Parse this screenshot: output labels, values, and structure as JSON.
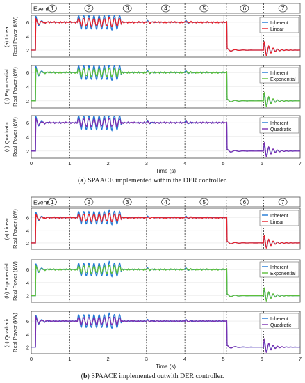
{
  "colors": {
    "inherent": "#1f77d4",
    "linear": "#e8202a",
    "exponential": "#5cbf3a",
    "quadratic": "#7b2fb0",
    "event_line": "#333333",
    "grid": "#e4e4e4"
  },
  "captions": [
    {
      "tag": "a",
      "text": "SPAACE implemented within the DER controller."
    },
    {
      "tag": "b",
      "text": "SPAACE implemented outwith DER controller."
    }
  ],
  "chart_data": [
    {
      "type": "line",
      "group": "a",
      "events_label": "Events",
      "events": [
        {
          "label": "1",
          "x": 0.55
        },
        {
          "label": "2",
          "x": 1.5
        },
        {
          "label": "3",
          "x": 2.5
        },
        {
          "label": "4",
          "x": 3.5
        },
        {
          "label": "5",
          "x": 4.5
        },
        {
          "label": "6",
          "x": 5.55
        },
        {
          "label": "7",
          "x": 6.55
        }
      ],
      "event_times": [
        1,
        2,
        3,
        4,
        5.08,
        6.05
      ],
      "xlim": [
        0,
        7
      ],
      "xticks": [
        "0",
        "1",
        "2",
        "3",
        "4",
        "5",
        "6",
        "7"
      ],
      "xlabel": "Time (s)",
      "ylabel": "Real Power (kW)",
      "ylim": [
        1,
        7
      ],
      "yticks": [
        "2",
        "4",
        "6"
      ],
      "subplots": [
        {
          "row_label": "(a) Linear",
          "series": [
            {
              "name": "Inherent",
              "color_key": "inherent"
            },
            {
              "name": "Linear",
              "color_key": "linear"
            }
          ]
        },
        {
          "row_label": "(b) Exponential",
          "series": [
            {
              "name": "Inherent",
              "color_key": "inherent"
            },
            {
              "name": "Exponential",
              "color_key": "exponential"
            }
          ]
        },
        {
          "row_label": "(c) Quadratic",
          "series": [
            {
              "name": "Inherent",
              "color_key": "inherent"
            },
            {
              "name": "Quadratic",
              "color_key": "quadratic"
            }
          ]
        }
      ],
      "levels": {
        "initial": 2,
        "high": 6,
        "after_step": 2
      },
      "step_times": {
        "rise": 0.12,
        "fall": 5.1
      },
      "oscillation_window": [
        1.2,
        2.35
      ],
      "oscillation_amplitude": 1.3
    },
    {
      "type": "line",
      "group": "b",
      "events_label": "Events",
      "events": [
        {
          "label": "1",
          "x": 0.55
        },
        {
          "label": "2",
          "x": 1.5
        },
        {
          "label": "3",
          "x": 2.5
        },
        {
          "label": "4",
          "x": 3.5
        },
        {
          "label": "5",
          "x": 4.5
        },
        {
          "label": "6",
          "x": 5.55
        },
        {
          "label": "7",
          "x": 6.55
        }
      ],
      "event_times": [
        1,
        2,
        3,
        4,
        5.08,
        6.05
      ],
      "xlim": [
        0,
        7
      ],
      "xticks": [
        "0",
        "1",
        "2",
        "3",
        "4",
        "5",
        "6",
        "7"
      ],
      "xlabel": "Time (s)",
      "ylabel": "Real Power (kW)",
      "ylim": [
        1,
        7.5
      ],
      "yticks": [
        "2",
        "4",
        "6"
      ],
      "subplots": [
        {
          "row_label": "(a) Linear",
          "series": [
            {
              "name": "Inherent",
              "color_key": "inherent"
            },
            {
              "name": "Linear",
              "color_key": "linear"
            }
          ]
        },
        {
          "row_label": "(b) Exponential",
          "series": [
            {
              "name": "Inherent",
              "color_key": "inherent"
            },
            {
              "name": "Exponential",
              "color_key": "exponential"
            }
          ]
        },
        {
          "row_label": "(c) Quadratic",
          "series": [
            {
              "name": "Inherent",
              "color_key": "inherent"
            },
            {
              "name": "Quadratic",
              "color_key": "quadratic"
            }
          ]
        }
      ],
      "levels": {
        "initial": 2,
        "high": 6,
        "after_step": 2
      },
      "step_times": {
        "rise": 0.12,
        "fall": 5.1
      },
      "oscillation_window": [
        1.2,
        2.35
      ],
      "oscillation_amplitude": 1.3
    }
  ]
}
